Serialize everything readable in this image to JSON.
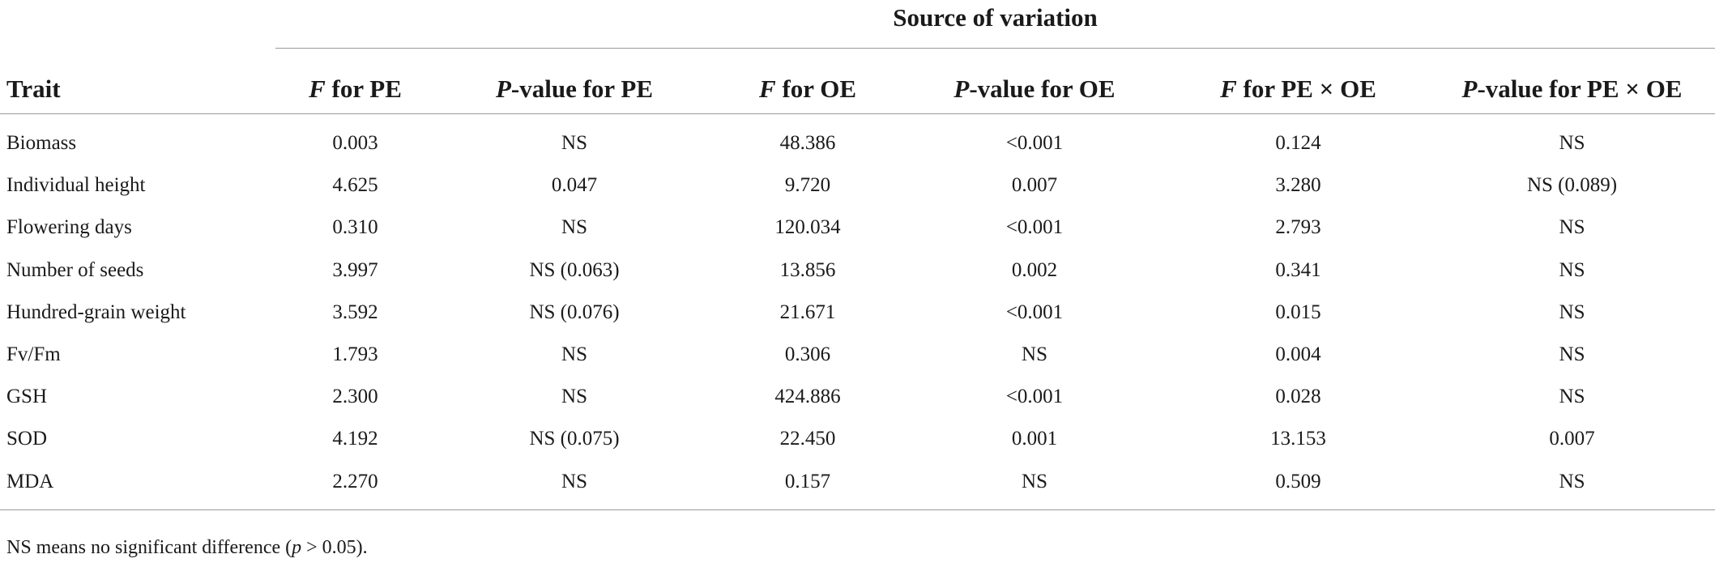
{
  "table": {
    "group_header": "Source of variation",
    "columns": [
      {
        "key": "trait",
        "prefix": "",
        "italic": "",
        "suffix": "Trait"
      },
      {
        "key": "f_pe",
        "prefix": "",
        "italic": "F",
        "suffix": " for PE"
      },
      {
        "key": "p_pe",
        "prefix": "",
        "italic": "P",
        "suffix": "-value for PE"
      },
      {
        "key": "f_oe",
        "prefix": "",
        "italic": "F",
        "suffix": " for OE"
      },
      {
        "key": "p_oe",
        "prefix": "",
        "italic": "P",
        "suffix": "-value for OE"
      },
      {
        "key": "f_peoe",
        "prefix": "",
        "italic": "F",
        "suffix": " for PE × OE"
      },
      {
        "key": "p_peoe",
        "prefix": "",
        "italic": "P",
        "suffix": "-value for PE × OE"
      }
    ],
    "rows": [
      {
        "trait": "Biomass",
        "f_pe": "0.003",
        "p_pe": "NS",
        "f_oe": "48.386",
        "p_oe": "<0.001",
        "f_peoe": "0.124",
        "p_peoe": "NS"
      },
      {
        "trait": "Individual height",
        "f_pe": "4.625",
        "p_pe": "0.047",
        "f_oe": "9.720",
        "p_oe": "0.007",
        "f_peoe": "3.280",
        "p_peoe": "NS (0.089)"
      },
      {
        "trait": "Flowering days",
        "f_pe": "0.310",
        "p_pe": "NS",
        "f_oe": "120.034",
        "p_oe": "<0.001",
        "f_peoe": "2.793",
        "p_peoe": "NS"
      },
      {
        "trait": "Number of seeds",
        "f_pe": "3.997",
        "p_pe": "NS (0.063)",
        "f_oe": "13.856",
        "p_oe": "0.002",
        "f_peoe": "0.341",
        "p_peoe": "NS"
      },
      {
        "trait": "Hundred-grain weight",
        "f_pe": "3.592",
        "p_pe": "NS (0.076)",
        "f_oe": "21.671",
        "p_oe": "<0.001",
        "f_peoe": "0.015",
        "p_peoe": "NS"
      },
      {
        "trait": "Fv/Fm",
        "f_pe": "1.793",
        "p_pe": "NS",
        "f_oe": "0.306",
        "p_oe": "NS",
        "f_peoe": "0.004",
        "p_peoe": "NS"
      },
      {
        "trait": "GSH",
        "f_pe": "2.300",
        "p_pe": "NS",
        "f_oe": "424.886",
        "p_oe": "<0.001",
        "f_peoe": "0.028",
        "p_peoe": "NS"
      },
      {
        "trait": "SOD",
        "f_pe": "4.192",
        "p_pe": "NS (0.075)",
        "f_oe": "22.450",
        "p_oe": "0.001",
        "f_peoe": "13.153",
        "p_peoe": "0.007"
      },
      {
        "trait": "MDA",
        "f_pe": "2.270",
        "p_pe": "NS",
        "f_oe": "0.157",
        "p_oe": "NS",
        "f_peoe": "0.509",
        "p_peoe": "NS"
      }
    ]
  },
  "footnote": {
    "before": "NS means no significant difference (",
    "italic": "p",
    "after": " > 0.05)."
  }
}
